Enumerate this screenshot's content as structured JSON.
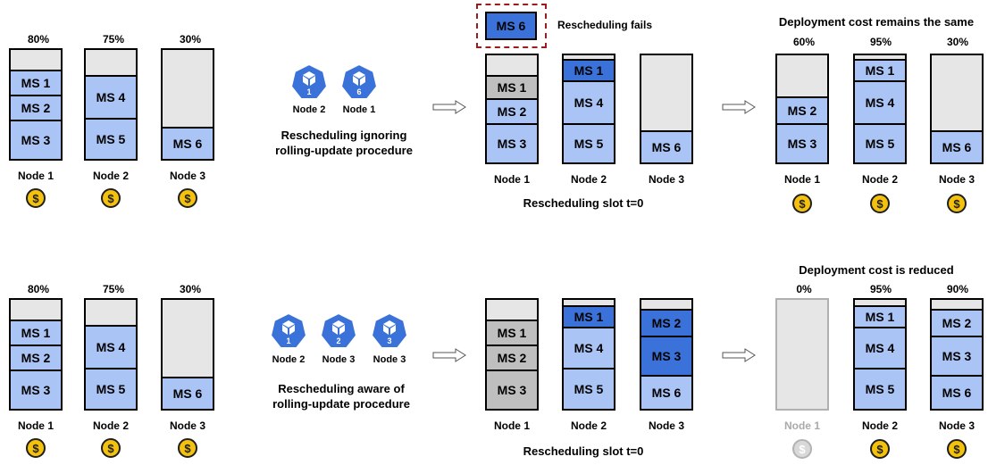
{
  "coin_symbol": "$",
  "colors": {
    "light_ms": "#a9c4f5",
    "dark_ms": "#3b72d9",
    "grey_ms": "#bfbfbf",
    "coin": "#f4c20d",
    "dash": "#9b1c1c"
  },
  "icon": "kubernetes-node-icon",
  "top": {
    "initial": {
      "percents": [
        "80%",
        "75%",
        "30%"
      ],
      "nodes": [
        "Node 1",
        "Node 2",
        "Node 3"
      ],
      "ms": [
        "MS 1",
        "MS 2",
        "MS 3",
        "MS 4",
        "MS 5",
        "MS 6"
      ]
    },
    "method": {
      "badges": [
        {
          "num": "1",
          "node": "Node 2"
        },
        {
          "num": "6",
          "node": "Node 1"
        }
      ],
      "caption_line1": "Rescheduling ignoring",
      "caption_line2": "rolling-update procedure"
    },
    "slot": {
      "floating_ms": "MS 6",
      "fail_label": "Rescheduling fails",
      "nodes": [
        "Node 1",
        "Node 2",
        "Node 3"
      ],
      "ms": [
        "MS 1",
        "MS 2",
        "MS 3",
        "MS 1",
        "MS 4",
        "MS 5",
        "MS 6"
      ],
      "caption": "Rescheduling slot t=0"
    },
    "result": {
      "title": "Deployment cost remains the same",
      "percents": [
        "60%",
        "95%",
        "30%"
      ],
      "nodes": [
        "Node 1",
        "Node 2",
        "Node 3"
      ],
      "ms": [
        "MS 2",
        "MS 3",
        "MS 1",
        "MS 4",
        "MS 5",
        "MS 6"
      ]
    }
  },
  "bottom": {
    "initial": {
      "percents": [
        "80%",
        "75%",
        "30%"
      ],
      "nodes": [
        "Node 1",
        "Node 2",
        "Node 3"
      ],
      "ms": [
        "MS 1",
        "MS 2",
        "MS 3",
        "MS 4",
        "MS 5",
        "MS 6"
      ]
    },
    "method": {
      "badges": [
        {
          "num": "1",
          "node": "Node 2"
        },
        {
          "num": "2",
          "node": "Node 3"
        },
        {
          "num": "3",
          "node": "Node 3"
        }
      ],
      "caption_line1": "Rescheduling aware of",
      "caption_line2": "rolling-update procedure"
    },
    "slot": {
      "nodes": [
        "Node 1",
        "Node 2",
        "Node 3"
      ],
      "ms": [
        "MS 1",
        "MS 2",
        "MS 3",
        "MS 1",
        "MS 4",
        "MS 5",
        "MS 2",
        "MS 3",
        "MS 6"
      ],
      "caption": "Rescheduling slot t=0"
    },
    "result": {
      "title": "Deployment cost is reduced",
      "percents": [
        "0%",
        "95%",
        "90%"
      ],
      "nodes": [
        "Node 1",
        "Node 2",
        "Node 3"
      ],
      "ms": [
        "MS 1",
        "MS 4",
        "MS 5",
        "MS 2",
        "MS 3",
        "MS 6"
      ]
    }
  }
}
